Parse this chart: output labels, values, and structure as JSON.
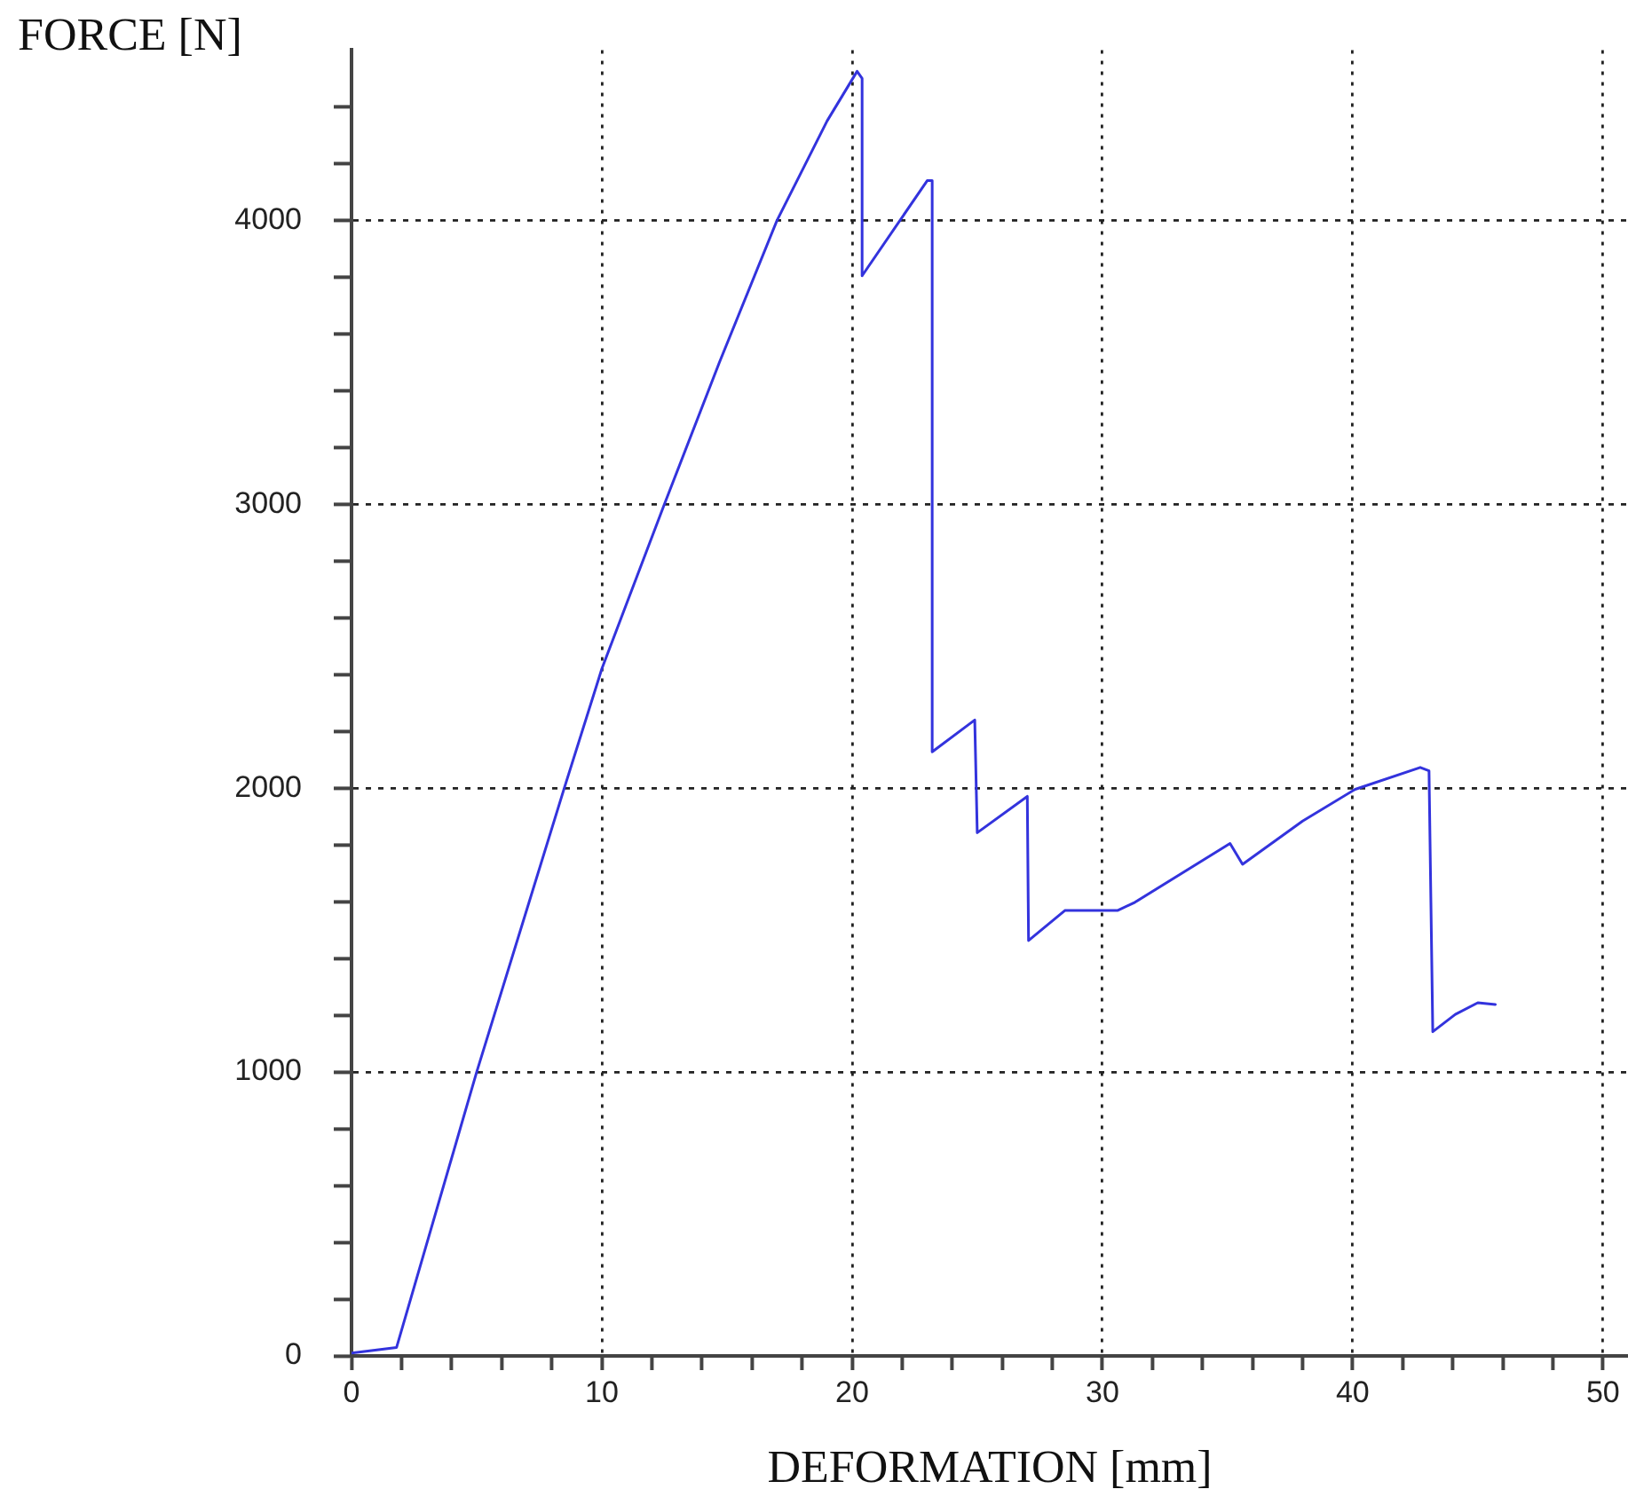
{
  "chart_data": {
    "type": "line",
    "xlabel": "DEFORMATION [mm]",
    "ylabel": "FORCE [N]",
    "xlim": [
      0,
      51
    ],
    "ylim": [
      0,
      4600
    ],
    "xticks": [
      0,
      {
        "value": 2,
        "label": null
      },
      {
        "value": 4,
        "label": null
      },
      {
        "value": 6,
        "label": null
      },
      {
        "value": 8,
        "label": null
      },
      10,
      {
        "value": 12,
        "label": null
      },
      {
        "value": 14,
        "label": null
      },
      {
        "value": 16,
        "label": null
      },
      {
        "value": 18,
        "label": null
      },
      20,
      {
        "value": 22,
        "label": null
      },
      {
        "value": 24,
        "label": null
      },
      {
        "value": 26,
        "label": null
      },
      {
        "value": 28,
        "label": null
      },
      30,
      {
        "value": 32,
        "label": null
      },
      {
        "value": 34,
        "label": null
      },
      {
        "value": 36,
        "label": null
      },
      {
        "value": 38,
        "label": null
      },
      40,
      {
        "value": 42,
        "label": null
      },
      {
        "value": 44,
        "label": null
      },
      {
        "value": 46,
        "label": null
      },
      {
        "value": 48,
        "label": null
      },
      50
    ],
    "yticks": [
      0,
      {
        "value": 200,
        "label": null
      },
      {
        "value": 400,
        "label": null
      },
      {
        "value": 600,
        "label": null
      },
      {
        "value": 800,
        "label": null
      },
      1000,
      {
        "value": 1200,
        "label": null
      },
      {
        "value": 1400,
        "label": null
      },
      {
        "value": 1600,
        "label": null
      },
      {
        "value": 1800,
        "label": null
      },
      2000,
      {
        "value": 2200,
        "label": null
      },
      {
        "value": 2400,
        "label": null
      },
      {
        "value": 2600,
        "label": null
      },
      {
        "value": 2800,
        "label": null
      },
      3000,
      {
        "value": 3200,
        "label": null
      },
      {
        "value": 3400,
        "label": null
      },
      {
        "value": 3600,
        "label": null
      },
      {
        "value": 3800,
        "label": null
      },
      4000,
      {
        "value": 4200,
        "label": null
      },
      {
        "value": 4400,
        "label": null
      }
    ],
    "grid": true,
    "legend": false,
    "marker": "none",
    "line_style": "solid",
    "series": [
      {
        "color": "#3333dd",
        "x": [
          0,
          1.8,
          5.0,
          8.5,
          10,
          12.5,
          14.7,
          17.0,
          19.0,
          20.2,
          20.4,
          20.4,
          23.0,
          23.2,
          23.2,
          24.9,
          25.0,
          27.0,
          27.05,
          28.5,
          30.6,
          31.3,
          35.1,
          35.6,
          38.0,
          40.1,
          42.7,
          43.05,
          43.2,
          44.1,
          45.0,
          45.7
        ],
        "values": [
          10,
          30,
          1000,
          2000,
          2420,
          3000,
          3500,
          4000,
          4350,
          4525,
          4500,
          3805,
          4140,
          4140,
          2128,
          2240,
          1843,
          1971,
          1463,
          1569,
          1569,
          1598,
          1805,
          1732,
          1884,
          1996,
          2073,
          2061,
          1142,
          1203,
          1244,
          1238
        ]
      }
    ]
  }
}
